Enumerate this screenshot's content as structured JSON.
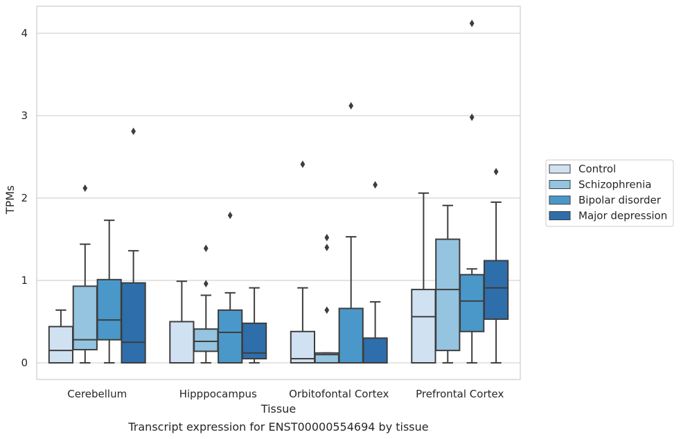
{
  "chart_data": {
    "type": "box",
    "title": "Transcript expression for ENST00000554694 by tissue",
    "xlabel": "Tissue",
    "ylabel": "TPMs",
    "ylim": [
      -0.2,
      4.3
    ],
    "yticks": [
      0,
      1,
      2,
      3,
      4
    ],
    "grid": "horizontal",
    "legend_placement": "right",
    "categories": [
      "Cerebellum",
      "Hipppocampus",
      "Orbitofontal Cortex",
      "Prefrontal Cortex"
    ],
    "series": [
      {
        "name": "Control",
        "color": "#d0e1f2",
        "boxes": [
          {
            "whislo": 0,
            "q1": 0,
            "med": 0.15,
            "q3": 0.44,
            "whishi": 0.64,
            "fliers": []
          },
          {
            "whislo": 0,
            "q1": 0,
            "med": 0,
            "q3": 0.5,
            "whishi": 0.99,
            "fliers": []
          },
          {
            "whislo": 0,
            "q1": 0,
            "med": 0.05,
            "q3": 0.38,
            "whishi": 0.91,
            "fliers": [
              2.41
            ]
          },
          {
            "whislo": 0,
            "q1": 0,
            "med": 0.56,
            "q3": 0.89,
            "whishi": 2.06,
            "fliers": []
          }
        ]
      },
      {
        "name": "Schizophrenia",
        "color": "#94c4df",
        "boxes": [
          {
            "whislo": 0,
            "q1": 0.16,
            "med": 0.28,
            "q3": 0.93,
            "whishi": 1.44,
            "fliers": [
              2.12
            ]
          },
          {
            "whislo": 0,
            "q1": 0.14,
            "med": 0.26,
            "q3": 0.41,
            "whishi": 0.82,
            "fliers": [
              0.96,
              1.39
            ]
          },
          {
            "whislo": 0,
            "q1": 0,
            "med": 0.1,
            "q3": 0.12,
            "whishi": 0.12,
            "fliers": [
              0.64,
              1.4,
              1.52
            ]
          },
          {
            "whislo": 0,
            "q1": 0.15,
            "med": 0.89,
            "q3": 1.5,
            "whishi": 1.91,
            "fliers": []
          }
        ]
      },
      {
        "name": "Bipolar disorder",
        "color": "#4a98c9",
        "boxes": [
          {
            "whislo": 0,
            "q1": 0.28,
            "med": 0.52,
            "q3": 1.01,
            "whishi": 1.73,
            "fliers": []
          },
          {
            "whislo": 0,
            "q1": 0,
            "med": 0.37,
            "q3": 0.64,
            "whishi": 0.85,
            "fliers": [
              1.79
            ]
          },
          {
            "whislo": 0,
            "q1": 0,
            "med": 0,
            "q3": 0.66,
            "whishi": 1.53,
            "fliers": [
              3.12
            ]
          },
          {
            "whislo": 0,
            "q1": 0.38,
            "med": 0.75,
            "q3": 1.07,
            "whishi": 1.14,
            "fliers": [
              2.98,
              4.12
            ]
          }
        ]
      },
      {
        "name": "Major depression",
        "color": "#2e6eab",
        "boxes": [
          {
            "whislo": 0,
            "q1": 0,
            "med": 0.25,
            "q3": 0.97,
            "whishi": 1.36,
            "fliers": [
              2.81
            ]
          },
          {
            "whislo": 0,
            "q1": 0.05,
            "med": 0.12,
            "q3": 0.48,
            "whishi": 0.91,
            "fliers": []
          },
          {
            "whislo": 0,
            "q1": 0,
            "med": 0,
            "q3": 0.3,
            "whishi": 0.74,
            "fliers": [
              2.16
            ]
          },
          {
            "whislo": 0,
            "q1": 0.53,
            "med": 0.91,
            "q3": 1.24,
            "whishi": 1.95,
            "fliers": [
              2.32
            ]
          }
        ]
      }
    ]
  }
}
